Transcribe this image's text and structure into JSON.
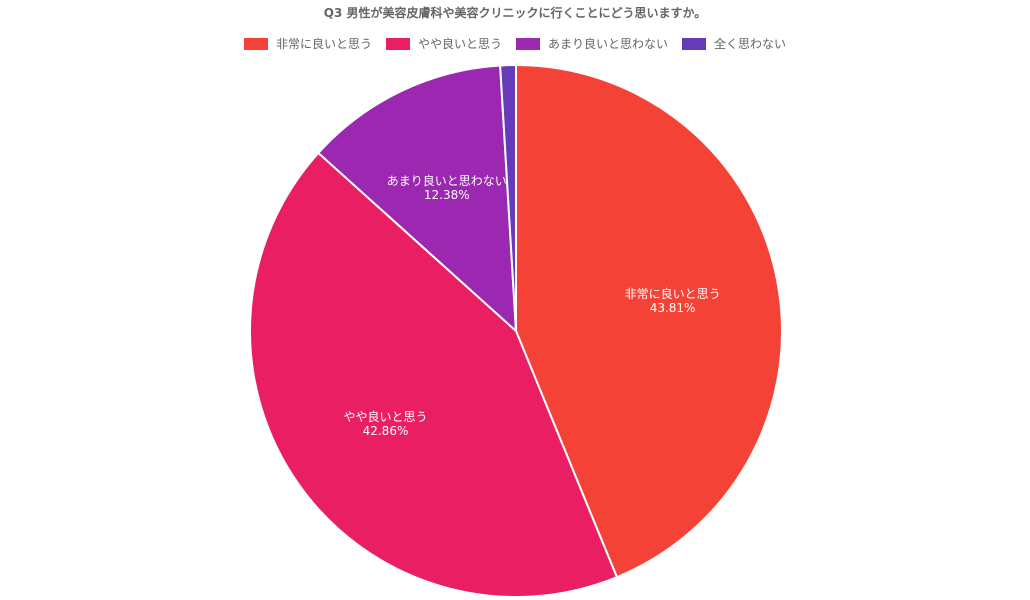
{
  "chart_data": {
    "type": "pie",
    "title": "Q3 男性が美容皮膚科や美容クリニックに行くことにどう思いますか。",
    "categories": [
      "非常に良いと思う",
      "やや良いと思う",
      "あまり良いと思わない",
      "全く思わない"
    ],
    "values": [
      43.81,
      42.86,
      12.38,
      0.95
    ],
    "value_labels": [
      "43.81%",
      "42.86%",
      "12.38%",
      ""
    ],
    "colors": [
      "#f44336",
      "#e91e63",
      "#9c27b0",
      "#673ab7"
    ],
    "legend_position": "top",
    "start_angle_deg": 0,
    "direction": "clockwise"
  },
  "title": "Q3 男性が美容皮膚科や美容クリニックに行くことにどう思いますか。",
  "legend": [
    {
      "label": "非常に良いと思う",
      "color": "#f44336"
    },
    {
      "label": "やや良いと思う",
      "color": "#e91e63"
    },
    {
      "label": "あまり良いと思わない",
      "color": "#9c27b0"
    },
    {
      "label": "全く思わない",
      "color": "#673ab7"
    }
  ]
}
